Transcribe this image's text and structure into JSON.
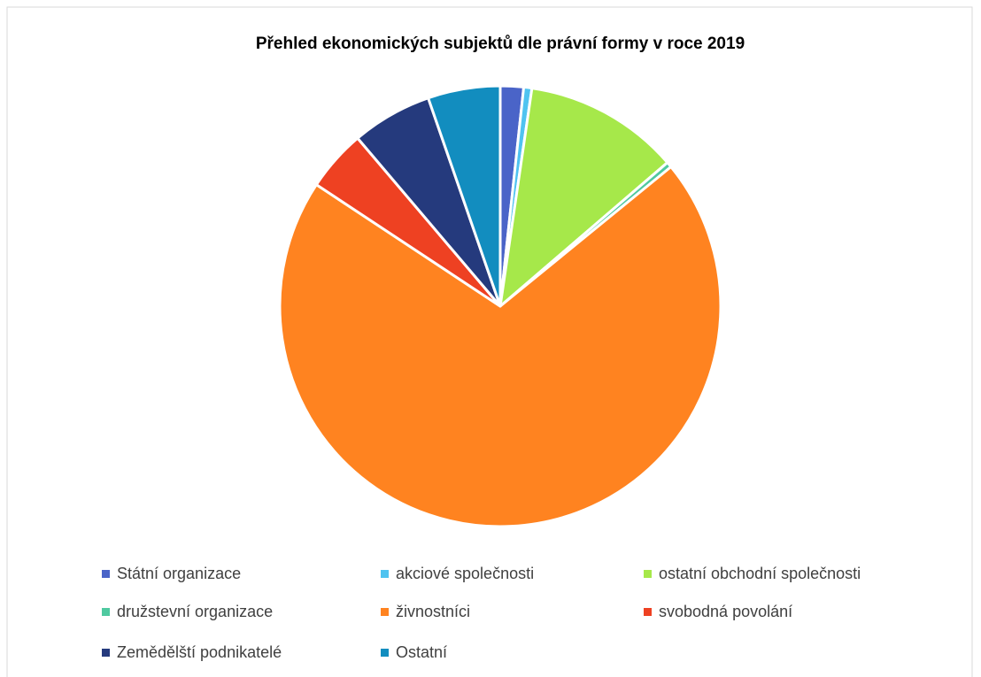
{
  "chart_data": {
    "type": "pie",
    "title": "Přehled ekonomických subjektů dle právní formy v roce 2019",
    "categories": [
      "Státní organizace",
      "akciové společnosti",
      "ostatní obchodní společnosti",
      "družstevní organizace",
      "živnostníci",
      "svobodná povolání",
      "Zemědělští podnikatelé",
      "Ostatní"
    ],
    "values": [
      1.7,
      0.6,
      11.4,
      0.4,
      70.2,
      4.5,
      5.9,
      5.3
    ],
    "colors": [
      "#4a64c8",
      "#4fc3f0",
      "#a6e84a",
      "#4fc9a0",
      "#ff8320",
      "#ee4122",
      "#253a7d",
      "#128dbf"
    ]
  }
}
